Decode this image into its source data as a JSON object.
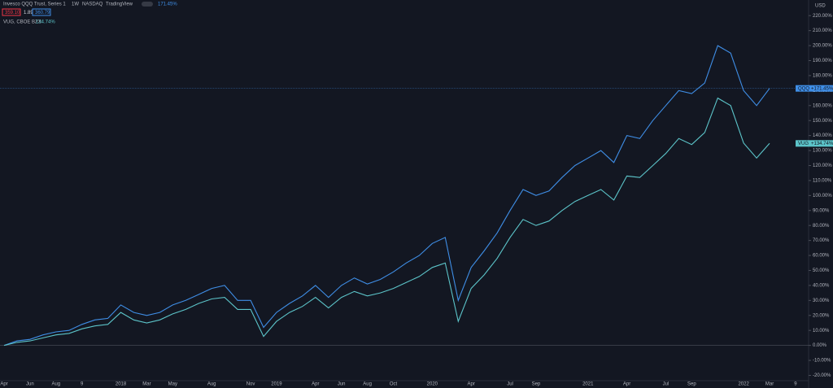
{
  "chart_data": {
    "type": "line",
    "header": {
      "symbol": "Invesco QQQ Trust, Series 1",
      "interval": "1W",
      "exchange": "NASDAQ",
      "source": "TradingView",
      "change": "171.45%",
      "price_boxes": [
        "359.10",
        "1.89",
        "360.79"
      ],
      "compare_label": "VUG, CBOE BZX",
      "compare_change": "134.74%"
    },
    "y_unit": "USD",
    "categories": [
      "Apr",
      null,
      "Jun",
      null,
      "Aug",
      null,
      "9",
      null,
      null,
      "2018",
      null,
      "Mar",
      null,
      "May",
      null,
      null,
      "Aug",
      null,
      null,
      "Nov",
      null,
      "2019",
      null,
      null,
      "Apr",
      null,
      "Jun",
      null,
      "Aug",
      null,
      "Oct",
      null,
      null,
      "2020",
      null,
      null,
      "Apr",
      null,
      null,
      "Jul",
      null,
      "Sep",
      null,
      null,
      null,
      "2021",
      null,
      null,
      "Apr",
      null,
      null,
      "Jul",
      null,
      "Sep",
      null,
      null,
      null,
      "2022",
      null,
      "Mar",
      null,
      "9"
    ],
    "series": [
      {
        "name": "QQQ",
        "color": "#3f8ee6",
        "last_label": "+171.45%",
        "values": [
          0,
          3,
          4,
          7,
          9,
          10,
          14,
          17,
          18,
          27,
          22,
          20,
          22,
          27,
          30,
          34,
          38,
          40,
          30,
          30,
          12,
          22,
          28,
          33,
          40,
          32,
          40,
          45,
          41,
          44,
          49,
          55,
          60,
          68,
          72,
          30,
          52,
          63,
          75,
          90,
          104,
          100,
          103,
          112,
          120,
          125,
          130,
          122,
          140,
          138,
          150,
          160,
          170,
          168,
          175,
          200,
          195,
          170,
          160,
          171.45,
          null,
          null
        ]
      },
      {
        "name": "VUG",
        "color": "#5cc4c9",
        "last_label": "+134.74%",
        "values": [
          0,
          2,
          3,
          5,
          7,
          8,
          11,
          13,
          14,
          22,
          17,
          15,
          17,
          21,
          24,
          28,
          31,
          32,
          24,
          24,
          6,
          16,
          22,
          26,
          32,
          25,
          32,
          36,
          33,
          35,
          38,
          42,
          46,
          52,
          55,
          16,
          38,
          47,
          58,
          72,
          84,
          80,
          83,
          90,
          96,
          100,
          104,
          97,
          113,
          112,
          120,
          128,
          138,
          134,
          142,
          165,
          160,
          135,
          125,
          134.74,
          null,
          null
        ]
      }
    ],
    "ylim": [
      -23,
      225
    ],
    "yticks": [
      {
        "value": -20,
        "label": "-20.00%"
      },
      {
        "value": -10,
        "label": "-10.00%"
      },
      {
        "value": 0,
        "label": "0.00%"
      },
      {
        "value": 10,
        "label": "10.00%"
      },
      {
        "value": 20,
        "label": "20.00%"
      },
      {
        "value": 30,
        "label": "30.00%"
      },
      {
        "value": 40,
        "label": "40.00%"
      },
      {
        "value": 50,
        "label": "50.00%"
      },
      {
        "value": 60,
        "label": "60.00%"
      },
      {
        "value": 70,
        "label": "70.00%"
      },
      {
        "value": 80,
        "label": "80.00%"
      },
      {
        "value": 90,
        "label": "90.00%"
      },
      {
        "value": 100,
        "label": "100.00%"
      },
      {
        "value": 110,
        "label": "110.00%"
      },
      {
        "value": 120,
        "label": "120.00%"
      },
      {
        "value": 130,
        "label": "130.00%"
      },
      {
        "value": 140,
        "label": "140.00%"
      },
      {
        "value": 150,
        "label": "150.00%"
      },
      {
        "value": 160,
        "label": "160.00%"
      },
      {
        "value": 170,
        "label": "170.00%"
      },
      {
        "value": 180,
        "label": "180.00%"
      },
      {
        "value": 190,
        "label": "190.00%"
      },
      {
        "value": 200,
        "label": "200.00%"
      },
      {
        "value": 210,
        "label": "210.00%"
      },
      {
        "value": 220,
        "label": "220.00%"
      }
    ],
    "grid": false
  }
}
